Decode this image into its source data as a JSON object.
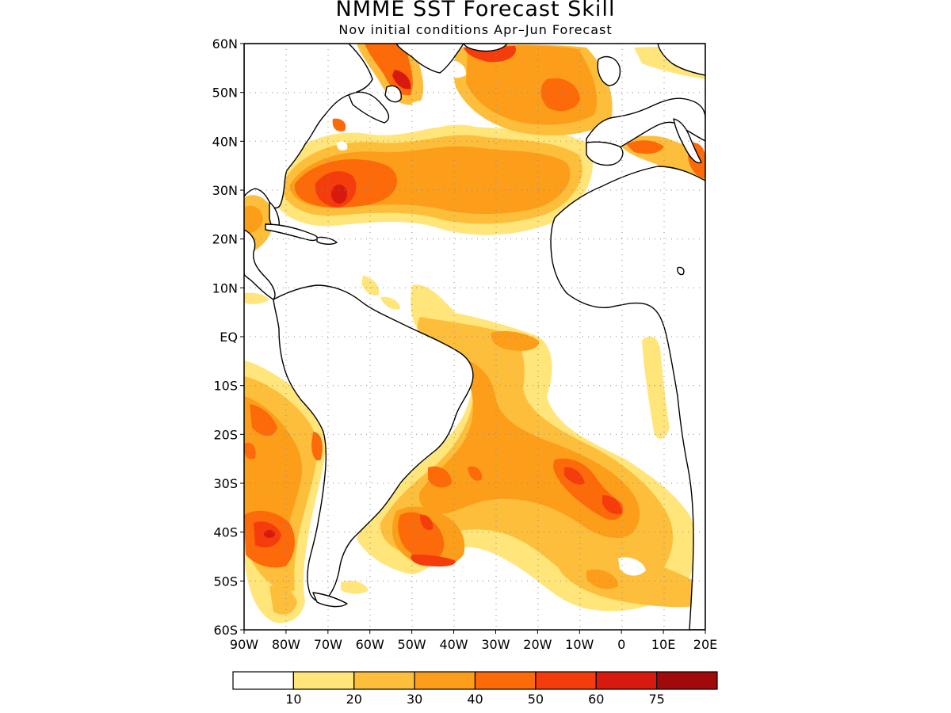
{
  "title": "NMME SST Forecast Skill",
  "subtitle": "Nov initial conditions  Apr–Jun Forecast",
  "map": {
    "lat_range": [
      -60,
      60
    ],
    "lon_range": [
      -90,
      20
    ],
    "lat_labels": [
      {
        "value": 60,
        "label": "60N"
      },
      {
        "value": 50,
        "label": "50N"
      },
      {
        "value": 40,
        "label": "40N"
      },
      {
        "value": 30,
        "label": "30N"
      },
      {
        "value": 20,
        "label": "20N"
      },
      {
        "value": 10,
        "label": "10N"
      },
      {
        "value": 0,
        "label": "EQ"
      },
      {
        "value": -10,
        "label": "10S"
      },
      {
        "value": -20,
        "label": "20S"
      },
      {
        "value": -30,
        "label": "30S"
      },
      {
        "value": -40,
        "label": "40S"
      },
      {
        "value": -50,
        "label": "50S"
      },
      {
        "value": -60,
        "label": "60S"
      }
    ],
    "lon_labels": [
      {
        "value": -90,
        "label": "90W"
      },
      {
        "value": -80,
        "label": "80W"
      },
      {
        "value": -70,
        "label": "70W"
      },
      {
        "value": -60,
        "label": "60W"
      },
      {
        "value": -50,
        "label": "50W"
      },
      {
        "value": -40,
        "label": "40W"
      },
      {
        "value": -30,
        "label": "30W"
      },
      {
        "value": -20,
        "label": "20W"
      },
      {
        "value": -10,
        "label": "10W"
      },
      {
        "value": 0,
        "label": "0"
      },
      {
        "value": 10,
        "label": "10E"
      },
      {
        "value": 20,
        "label": "20E"
      }
    ],
    "grid": "dotted"
  },
  "colorbar": {
    "bins": [
      {
        "color": "#ffffff"
      },
      {
        "color": "#ffe57a"
      },
      {
        "color": "#fdbf3b"
      },
      {
        "color": "#fd9e1a"
      },
      {
        "color": "#fd6a0a"
      },
      {
        "color": "#f53c0c"
      },
      {
        "color": "#d81a0e"
      },
      {
        "color": "#a00a0a"
      }
    ],
    "labels": [
      "10",
      "20",
      "30",
      "40",
      "50",
      "60",
      "75"
    ]
  }
}
